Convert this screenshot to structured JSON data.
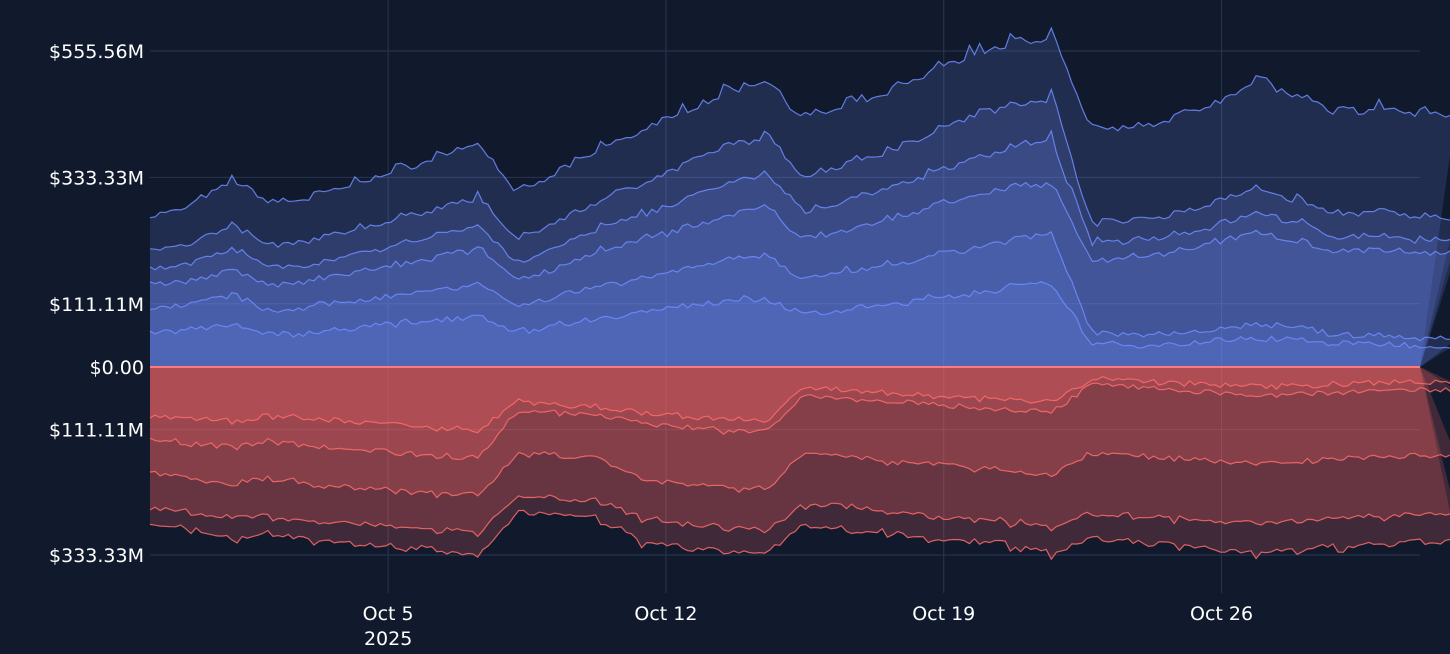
{
  "chart_data": {
    "type": "area",
    "title": "",
    "xlabel": "",
    "ylabel": "",
    "background": "#111a2c",
    "grid": true,
    "grid_color": "#2a3550",
    "x_range": [
      "2025-09-29",
      "2025-10-31"
    ],
    "x_ticks": [
      {
        "date": "2025-10-05",
        "label": "Oct 5",
        "sublabel": "2025"
      },
      {
        "date": "2025-10-12",
        "label": "Oct 12",
        "sublabel": ""
      },
      {
        "date": "2025-10-19",
        "label": "Oct 19",
        "sublabel": ""
      },
      {
        "date": "2025-10-26",
        "label": "Oct 26",
        "sublabel": ""
      }
    ],
    "y_ticks": [
      {
        "value": 555.56,
        "label": "$555.56M"
      },
      {
        "value": 333.33,
        "label": "$333.33M"
      },
      {
        "value": 111.11,
        "label": "$111.11M"
      },
      {
        "value": 0,
        "label": "$0.00"
      },
      {
        "value": -111.11,
        "label": "$111.11M"
      },
      {
        "value": -333.33,
        "label": "$333.33M"
      }
    ],
    "ylim": [
      -395,
      595
    ],
    "units": "$M",
    "positive_color": "#6f8cff",
    "negative_color": "#ff6b6b",
    "zero_line_color": "#ff7a7a",
    "resets": [
      "2025-10-03",
      "2025-10-10",
      "2025-10-17",
      "2025-10-24"
    ],
    "positive_layers": [
      {
        "values": [
          260,
          280,
          325,
          285,
          295,
          320,
          340,
          365,
          390,
          300,
          340,
          380,
          410,
          445,
          475,
          500,
          430,
          455,
          475,
          510,
          545,
          560,
          575,
          410,
          420,
          430,
          460,
          500,
          470,
          440,
          450,
          440
        ]
      },
      {
        "values": [
          205,
          215,
          245,
          210,
          220,
          240,
          255,
          275,
          295,
          220,
          255,
          290,
          320,
          350,
          380,
          400,
          330,
          355,
          375,
          405,
          435,
          455,
          470,
          250,
          255,
          265,
          285,
          310,
          290,
          265,
          270,
          260
        ]
      },
      {
        "values": [
          170,
          180,
          205,
          170,
          180,
          195,
          210,
          230,
          245,
          180,
          210,
          240,
          265,
          290,
          315,
          335,
          270,
          290,
          310,
          335,
          360,
          380,
          395,
          215,
          220,
          230,
          245,
          270,
          250,
          225,
          230,
          220
        ]
      },
      {
        "values": [
          140,
          150,
          170,
          140,
          150,
          165,
          175,
          190,
          205,
          150,
          175,
          200,
          220,
          240,
          260,
          280,
          220,
          240,
          255,
          275,
          295,
          310,
          320,
          185,
          190,
          200,
          215,
          235,
          220,
          200,
          205,
          200
        ]
      },
      {
        "values": [
          100,
          110,
          125,
          95,
          105,
          115,
          125,
          135,
          145,
          105,
          125,
          140,
          155,
          170,
          185,
          195,
          150,
          165,
          175,
          190,
          205,
          220,
          230,
          60,
          55,
          60,
          65,
          75,
          70,
          55,
          55,
          50
        ]
      },
      {
        "values": [
          60,
          65,
          75,
          55,
          60,
          68,
          75,
          82,
          90,
          60,
          75,
          85,
          95,
          105,
          115,
          120,
          90,
          100,
          108,
          118,
          128,
          138,
          145,
          40,
          38,
          40,
          45,
          50,
          48,
          40,
          40,
          38
        ]
      }
    ],
    "negative_layers": [
      {
        "values": [
          -275,
          -285,
          -300,
          -290,
          -305,
          -310,
          -315,
          -320,
          -330,
          -255,
          -260,
          -265,
          -305,
          -315,
          -320,
          -330,
          -275,
          -285,
          -290,
          -300,
          -305,
          -310,
          -325,
          -300,
          -305,
          -310,
          -320,
          -325,
          -320,
          -315,
          -310,
          -305
        ]
      },
      {
        "values": [
          -245,
          -255,
          -265,
          -260,
          -270,
          -275,
          -280,
          -285,
          -290,
          -225,
          -230,
          -235,
          -265,
          -275,
          -280,
          -285,
          -240,
          -245,
          -255,
          -260,
          -265,
          -270,
          -280,
          -255,
          -260,
          -265,
          -270,
          -275,
          -270,
          -265,
          -262,
          -260
        ]
      },
      {
        "values": [
          -185,
          -195,
          -205,
          -195,
          -205,
          -210,
          -215,
          -220,
          -225,
          -150,
          -155,
          -160,
          -195,
          -205,
          -210,
          -215,
          -150,
          -155,
          -165,
          -170,
          -175,
          -180,
          -190,
          -150,
          -155,
          -160,
          -165,
          -170,
          -165,
          -160,
          -158,
          -155
        ]
      },
      {
        "values": [
          -125,
          -135,
          -140,
          -130,
          -140,
          -145,
          -150,
          -155,
          -160,
          -75,
          -80,
          -85,
          -100,
          -105,
          -110,
          -115,
          -50,
          -55,
          -60,
          -65,
          -70,
          -75,
          -80,
          -30,
          -35,
          -40,
          -45,
          -50,
          -48,
          -45,
          -42,
          -40
        ]
      },
      {
        "values": [
          -85,
          -90,
          -95,
          -85,
          -90,
          -95,
          -100,
          -105,
          -110,
          -60,
          -65,
          -70,
          -80,
          -85,
          -90,
          -95,
          -35,
          -40,
          -45,
          -50,
          -55,
          -58,
          -62,
          -20,
          -25,
          -28,
          -32,
          -35,
          -33,
          -30,
          -28,
          -26
        ]
      }
    ]
  }
}
